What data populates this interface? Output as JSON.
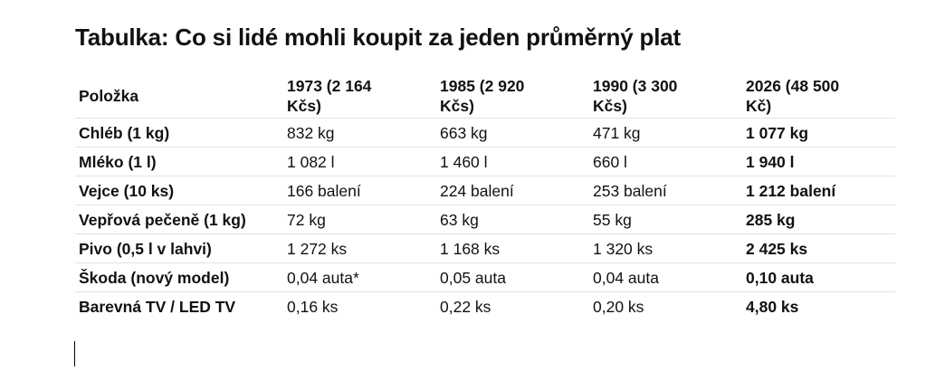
{
  "title": "Tabulka: Co si lidé mohli koupit za jeden průměrný plat",
  "table": {
    "header": [
      "Položka",
      "1973 (2 164 Kčs)",
      "1985 (2 920 Kčs)",
      "1990 (3 300 Kčs)",
      "2026 (48 500 Kč)"
    ],
    "rows": [
      [
        "Chléb (1 kg)",
        "832 kg",
        "663 kg",
        "471 kg",
        "1 077 kg"
      ],
      [
        "Mléko (1 l)",
        "1 082 l",
        "1 460 l",
        "660 l",
        "1 940 l"
      ],
      [
        "Vejce (10 ks)",
        "166 balení",
        "224 balení",
        "253 balení",
        "1 212 balení"
      ],
      [
        "Vepřová pečeně (1 kg)",
        "72 kg",
        "63 kg",
        "55 kg",
        "285 kg"
      ],
      [
        "Pivo (0,5 l v lahvi)",
        "1 272 ks",
        "1 168 ks",
        "1 320 ks",
        "2 425 ks"
      ],
      [
        "Škoda (nový model)",
        "0,04 auta*",
        "0,05 auta",
        "0,04 auta",
        "0,10 auta"
      ],
      [
        "Barevná TV / LED TV",
        "0,16 ks",
        "0,22 ks",
        "0,20 ks",
        "4,80 ks"
      ]
    ]
  }
}
